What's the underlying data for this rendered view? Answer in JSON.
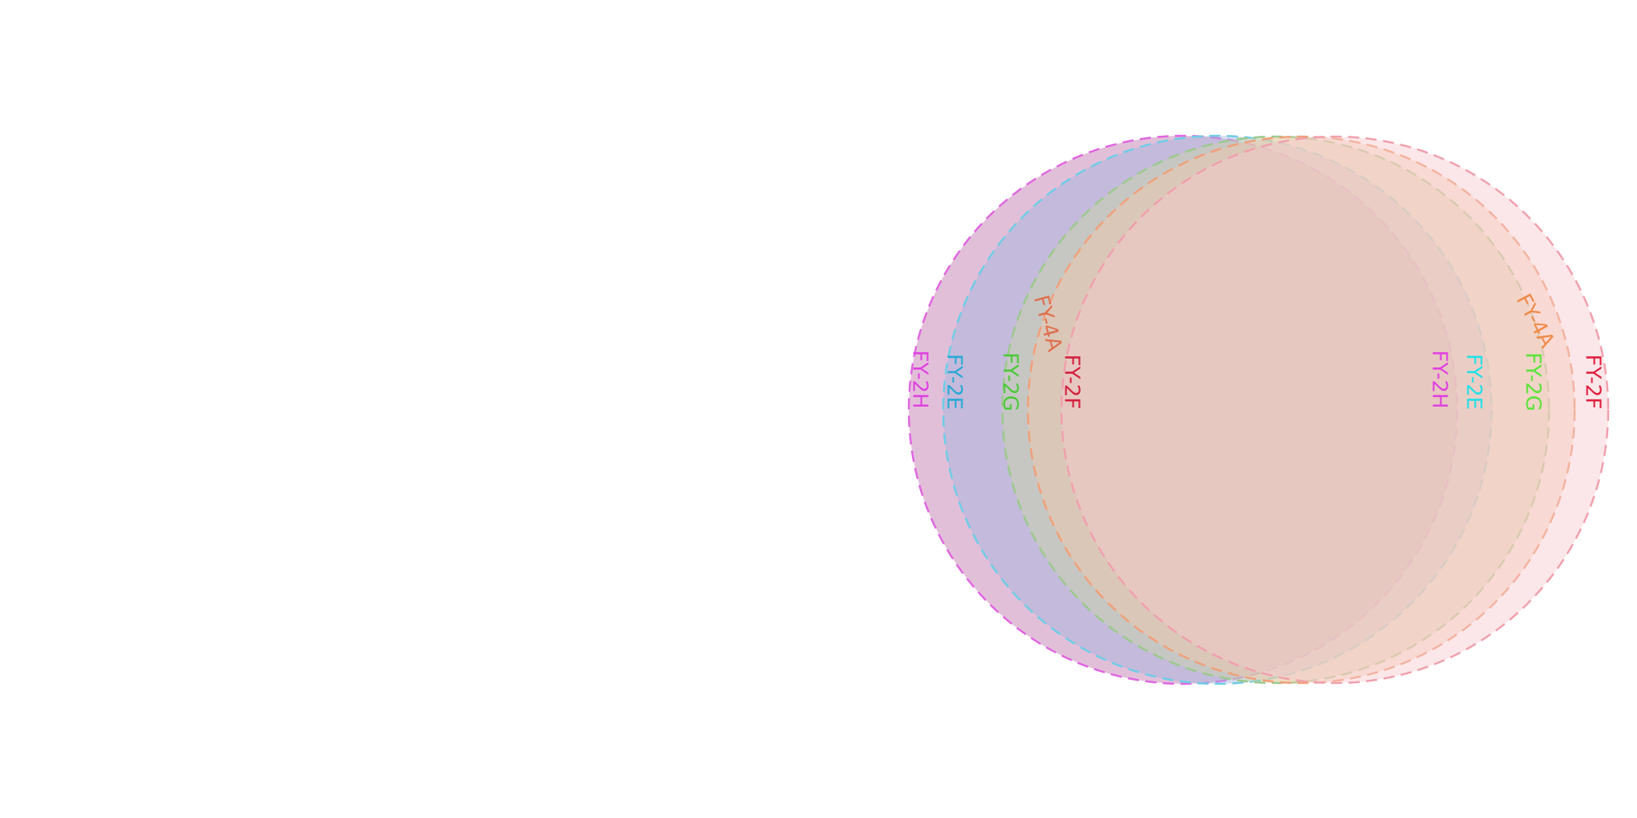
{
  "satellites": [
    {
      "name": "FY-2H",
      "left_label_color": "#e040e0",
      "right_label_color": "#e040e0",
      "fill": "#c57fb4",
      "stroke": "#e066e0",
      "opacity": 0.5
    },
    {
      "name": "FY-2E",
      "left_label_color": "#2aa9d6",
      "right_label_color": "#22e0e6",
      "fill": "#9fb3dd",
      "stroke": "#6fcde6",
      "opacity": 0.45
    },
    {
      "name": "FY-2G",
      "left_label_color": "#4cc93a",
      "right_label_color": "#5be33a",
      "fill": "#c9d7a6",
      "stroke": "#9cc98c",
      "opacity": 0.45
    },
    {
      "name": "FY-4A",
      "left_label_color": "#e07050",
      "right_label_color": "#f08a48",
      "fill": "#f4c7a9",
      "stroke": "#f0a07a",
      "opacity": 0.45
    },
    {
      "name": "FY-2F",
      "left_label_color": "#d42040",
      "right_label_color": "#e02040",
      "fill": "#f6c9cf",
      "stroke": "#f0a0ad",
      "opacity": 0.45
    }
  ]
}
